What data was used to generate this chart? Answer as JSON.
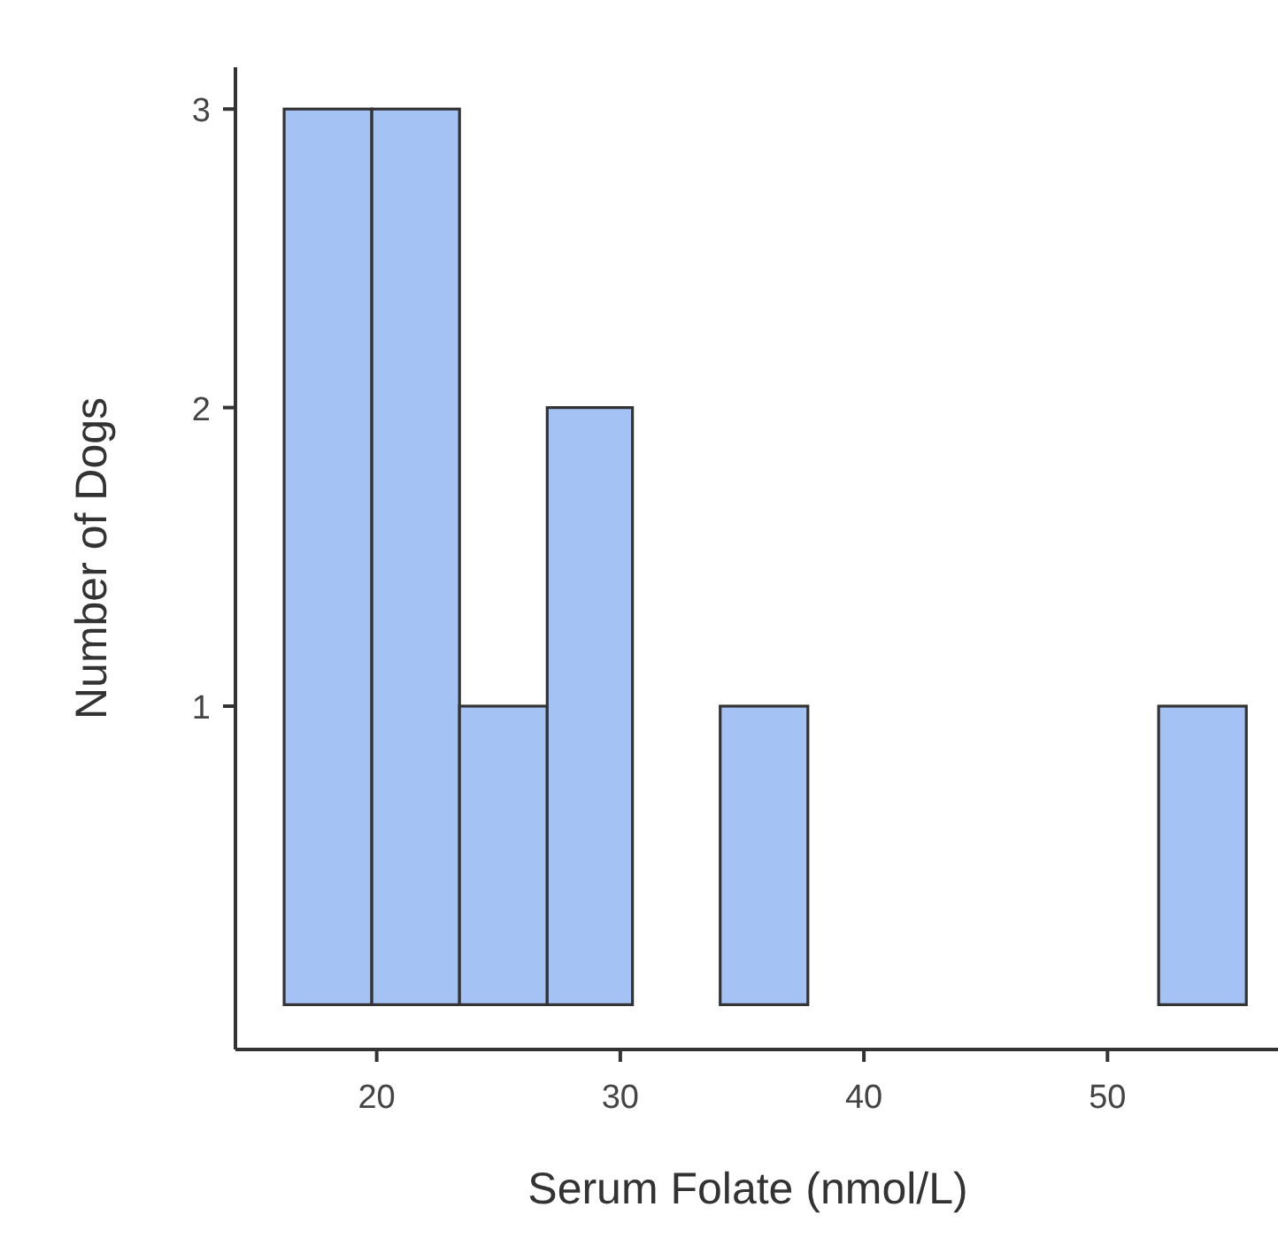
{
  "chart_data": {
    "type": "histogram",
    "xlabel": "Serum Folate (nmol/L)",
    "ylabel": "Number of Dogs",
    "bins": [
      16.2,
      19.8,
      23.4,
      27.0,
      30.5,
      34.1,
      37.7,
      52.1,
      55.7
    ],
    "values": [
      3,
      3,
      1,
      2,
      0,
      1,
      0,
      1
    ],
    "color": "#a4c2f4",
    "xlim": [
      14.2,
      57
    ],
    "xticks": [
      20,
      30,
      40,
      50
    ],
    "ylim": [
      -0.15,
      3.14
    ],
    "yticks": [
      1,
      2,
      3
    ],
    "grid": false
  }
}
